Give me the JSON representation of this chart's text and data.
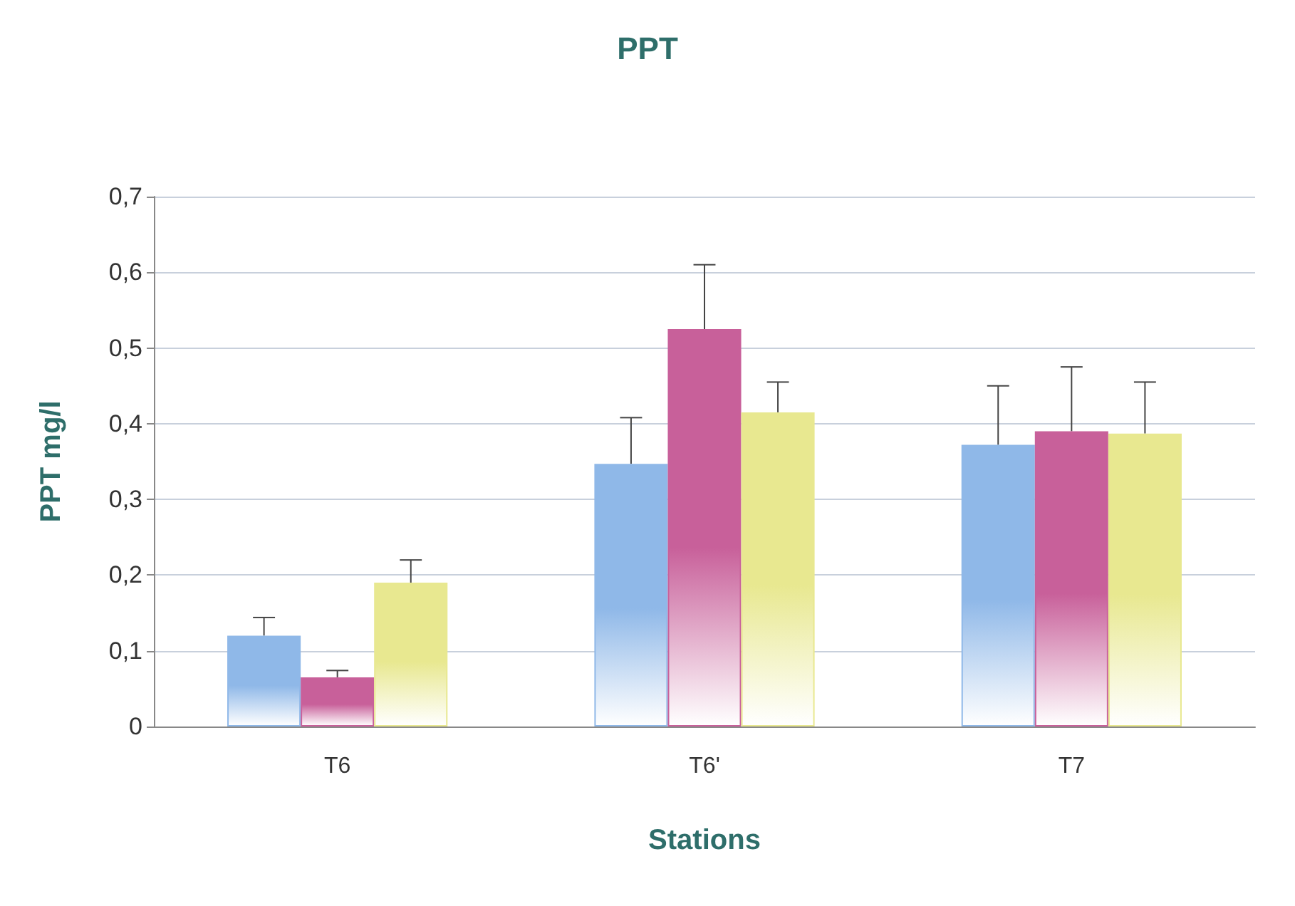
{
  "chart_data": {
    "type": "bar",
    "title": "PPT",
    "xlabel": "Stations",
    "ylabel": "PPT mg/l",
    "categories": [
      "T6",
      "T6'",
      "T7"
    ],
    "series": [
      {
        "color": "#8fb8e8",
        "values": [
          0.12,
          0.347,
          0.372
        ],
        "errors": [
          [
            0.12,
            0.144
          ],
          [
            0.347,
            0.408
          ],
          [
            0.372,
            0.45
          ]
        ]
      },
      {
        "color": "#c8609a",
        "values": [
          0.065,
          0.525,
          0.39
        ],
        "errors": [
          [
            0.065,
            0.074
          ],
          [
            0.525,
            0.61
          ],
          [
            0.39,
            0.475
          ]
        ]
      },
      {
        "color": "#e8e890",
        "values": [
          0.19,
          0.415,
          0.387
        ],
        "errors": [
          [
            0.19,
            0.22
          ],
          [
            0.415,
            0.455
          ],
          [
            0.387,
            0.455
          ]
        ]
      }
    ],
    "ylim": [
      0,
      0.7
    ],
    "yticks": [
      {
        "value": 0,
        "label": "0"
      },
      {
        "value": 0.1,
        "label": "0,1"
      },
      {
        "value": 0.2,
        "label": "0,2"
      },
      {
        "value": 0.3,
        "label": "0,3"
      },
      {
        "value": 0.4,
        "label": "0,4"
      },
      {
        "value": 0.5,
        "label": "0,5"
      },
      {
        "value": 0.6,
        "label": "0,6"
      },
      {
        "value": 0.7,
        "label": "0,7"
      }
    ],
    "grid": "y"
  }
}
